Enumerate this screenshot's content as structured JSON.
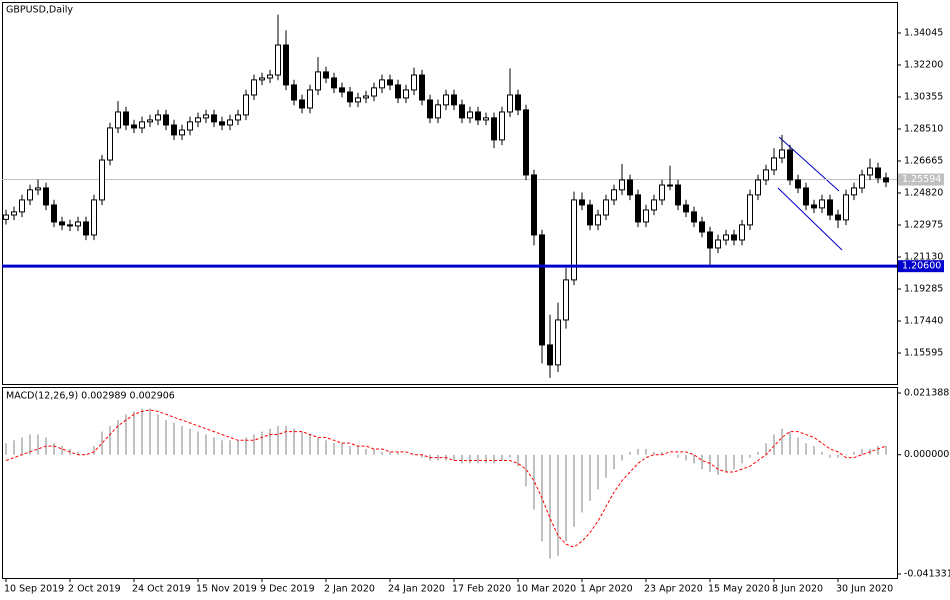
{
  "chart_data": [
    {
      "type": "candlestick",
      "title": "GBPUSD,Daily",
      "open": [
        1.233,
        1.2355,
        1.2373,
        1.2442,
        1.25,
        1.2511,
        1.2413,
        1.2315,
        1.2298,
        1.2292,
        1.2315,
        1.224,
        1.2442,
        1.2672,
        1.2857,
        1.2949,
        1.2874,
        1.2857,
        1.2892,
        1.2903,
        1.2932,
        1.2874,
        1.2817,
        1.2845,
        1.2892,
        1.2915,
        1.2932,
        1.2892,
        1.2874,
        1.2903,
        1.2932,
        1.3047,
        1.3134,
        1.3145,
        1.3162,
        1.3335,
        1.3105,
        1.3018,
        1.2972,
        1.3076,
        1.318,
        1.3145,
        1.3088,
        1.3064,
        1.3007,
        1.303,
        1.3041,
        1.3088,
        1.3134,
        1.3105,
        1.303,
        1.3076,
        1.3162,
        1.3018,
        1.2915,
        1.299,
        1.3047,
        1.299,
        1.2915,
        1.2949,
        1.2903,
        1.2915,
        1.2788,
        1.2949,
        1.3047,
        1.2961,
        1.2586,
        1.224,
        1.1606,
        1.1491,
        1.175,
        1.1981,
        1.2442,
        1.2413,
        1.2298,
        1.2355,
        1.2442,
        1.25,
        1.2557,
        1.2471,
        1.2315,
        1.2384,
        1.2442,
        1.2528,
        1.2528,
        1.2413,
        1.2373,
        1.2315,
        1.2257,
        1.2165,
        1.2211,
        1.224,
        1.2211,
        1.2298,
        1.2471,
        1.2557,
        1.2615,
        1.2684,
        1.273,
        1.2557,
        1.2511,
        1.2413,
        1.2396,
        1.2442,
        1.2355,
        1.2327,
        1.2471,
        1.2511,
        1.2586,
        1.2626,
        1.2569
      ],
      "high": [
        1.2385,
        1.2403,
        1.2472,
        1.253,
        1.256,
        1.2541,
        1.2443,
        1.2345,
        1.2328,
        1.2345,
        1.2345,
        1.2472,
        1.2702,
        1.2887,
        1.3012,
        1.2979,
        1.2904,
        1.2922,
        1.2933,
        1.2962,
        1.2962,
        1.2904,
        1.2875,
        1.2922,
        1.2945,
        1.2962,
        1.2962,
        1.2922,
        1.2933,
        1.2962,
        1.3077,
        1.3164,
        1.3175,
        1.3192,
        1.351,
        1.342,
        1.3135,
        1.3048,
        1.3106,
        1.3265,
        1.321,
        1.3175,
        1.3118,
        1.3094,
        1.306,
        1.3071,
        1.3118,
        1.3164,
        1.3164,
        1.3135,
        1.3106,
        1.3205,
        1.3192,
        1.3048,
        1.302,
        1.3077,
        1.3077,
        1.302,
        1.2979,
        1.2979,
        1.2945,
        1.2945,
        1.2979,
        1.32,
        1.3077,
        1.2991,
        1.2616,
        1.227,
        1.178,
        1.185,
        1.205,
        1.249,
        1.2485,
        1.2443,
        1.2385,
        1.2472,
        1.253,
        1.265,
        1.2587,
        1.2501,
        1.2414,
        1.2472,
        1.2558,
        1.264,
        1.2558,
        1.2443,
        1.2403,
        1.2345,
        1.2287,
        1.2241,
        1.227,
        1.227,
        1.2328,
        1.2501,
        1.2587,
        1.2645,
        1.274,
        1.2817,
        1.276,
        1.2587,
        1.2541,
        1.2443,
        1.2472,
        1.2472,
        1.2385,
        1.2501,
        1.2541,
        1.2616,
        1.268,
        1.2656,
        1.2599
      ],
      "low": [
        1.23,
        1.2325,
        1.2343,
        1.2412,
        1.247,
        1.2383,
        1.2285,
        1.2268,
        1.2262,
        1.2262,
        1.221,
        1.221,
        1.2412,
        1.2642,
        1.2827,
        1.2844,
        1.2827,
        1.2827,
        1.2862,
        1.2873,
        1.2844,
        1.2787,
        1.2787,
        1.2815,
        1.2862,
        1.2885,
        1.2862,
        1.2844,
        1.2844,
        1.2873,
        1.2902,
        1.3017,
        1.3104,
        1.3115,
        1.3132,
        1.3075,
        1.2988,
        1.2942,
        1.2942,
        1.3046,
        1.3115,
        1.3058,
        1.3034,
        1.2977,
        1.2977,
        1.3,
        1.3011,
        1.3058,
        1.3075,
        1.3,
        1.3,
        1.3046,
        1.2988,
        1.2885,
        1.2885,
        1.296,
        1.296,
        1.2885,
        1.2885,
        1.2873,
        1.2873,
        1.274,
        1.2758,
        1.2919,
        1.2931,
        1.2556,
        1.218,
        1.15,
        1.1416,
        1.145,
        1.17,
        1.1951,
        1.2383,
        1.2268,
        1.2268,
        1.2325,
        1.2412,
        1.247,
        1.2441,
        1.2285,
        1.2285,
        1.2354,
        1.2412,
        1.2498,
        1.2383,
        1.2343,
        1.2285,
        1.2227,
        1.2067,
        1.2135,
        1.2181,
        1.2181,
        1.2181,
        1.2268,
        1.2441,
        1.2527,
        1.2585,
        1.2654,
        1.2527,
        1.2481,
        1.2383,
        1.2366,
        1.2366,
        1.2325,
        1.228,
        1.2297,
        1.2441,
        1.2481,
        1.2556,
        1.2539,
        1.2516
      ],
      "close": [
        1.2355,
        1.2373,
        1.2442,
        1.25,
        1.2511,
        1.2413,
        1.2315,
        1.2298,
        1.2292,
        1.2315,
        1.224,
        1.2442,
        1.2672,
        1.2857,
        1.2949,
        1.2874,
        1.2857,
        1.2892,
        1.2903,
        1.2932,
        1.2874,
        1.2817,
        1.2845,
        1.2892,
        1.2915,
        1.2932,
        1.2892,
        1.2874,
        1.2903,
        1.2932,
        1.3047,
        1.3134,
        1.3145,
        1.3162,
        1.3335,
        1.3105,
        1.3018,
        1.2972,
        1.3076,
        1.318,
        1.3145,
        1.3088,
        1.3064,
        1.3007,
        1.303,
        1.3041,
        1.3088,
        1.3134,
        1.3105,
        1.303,
        1.3076,
        1.3162,
        1.3018,
        1.2915,
        1.299,
        1.3047,
        1.299,
        1.2915,
        1.2949,
        1.2903,
        1.2915,
        1.2788,
        1.2949,
        1.3047,
        1.2961,
        1.2586,
        1.224,
        1.1606,
        1.1491,
        1.175,
        1.1981,
        1.2442,
        1.2413,
        1.2298,
        1.2355,
        1.2442,
        1.25,
        1.2557,
        1.2471,
        1.2315,
        1.2384,
        1.2442,
        1.2528,
        1.2528,
        1.2413,
        1.2373,
        1.2315,
        1.2257,
        1.2165,
        1.2211,
        1.224,
        1.2211,
        1.2298,
        1.2471,
        1.2557,
        1.2615,
        1.2684,
        1.273,
        1.2557,
        1.2511,
        1.2413,
        1.2396,
        1.2442,
        1.2355,
        1.2327,
        1.2471,
        1.2511,
        1.2586,
        1.2626,
        1.2569,
        1.2546
      ],
      "up_color": "#ffffff",
      "down_color": "#000000",
      "ylim": [
        1.1375,
        1.3583
      ],
      "yticks": [
        1.34045,
        {
          "value": 1.322,
          "label": "1.32200"
        },
        1.30355,
        {
          "value": 1.2851,
          "label": "1.28510"
        },
        1.26665,
        {
          "value": 1.2482,
          "label": "1.24820"
        },
        1.22975,
        {
          "value": 1.2113,
          "label": "1.21130"
        },
        1.19285,
        {
          "value": 1.1744,
          "label": "1.17440"
        },
        1.15595
      ],
      "current_price": 1.25594,
      "current_price_color": "#c0c0c0",
      "level": {
        "value": 1.206,
        "label": "1.20600"
      },
      "level_color": "#0000cc"
    },
    {
      "type": "macd",
      "title": "MACD(12,26,9) 0.002989 0.002906",
      "categories": [
        "10 Sep 2019",
        null,
        null,
        null,
        null,
        null,
        null,
        null,
        "2 Oct 2019",
        null,
        null,
        null,
        null,
        null,
        null,
        null,
        "24 Oct 2019",
        null,
        null,
        null,
        null,
        null,
        null,
        null,
        "15 Nov 2019",
        null,
        null,
        null,
        null,
        null,
        null,
        null,
        "9 Dec 2019",
        null,
        null,
        null,
        null,
        null,
        null,
        null,
        "2 Jan 2020",
        null,
        null,
        null,
        null,
        null,
        null,
        null,
        "24 Jan 2020",
        null,
        null,
        null,
        null,
        null,
        null,
        null,
        "17 Feb 2020",
        null,
        null,
        null,
        null,
        null,
        null,
        null,
        "10 Mar 2020",
        null,
        null,
        null,
        null,
        null,
        null,
        null,
        "1 Apr 2020",
        null,
        null,
        null,
        null,
        null,
        null,
        null,
        "23 Apr 2020",
        null,
        null,
        null,
        null,
        null,
        null,
        null,
        "15 May 2020",
        null,
        null,
        null,
        null,
        null,
        null,
        null,
        "8 Jun 2020",
        null,
        null,
        null,
        null,
        null,
        null,
        null,
        "30 Jun 2020",
        null,
        null,
        null,
        null,
        null,
        null
      ],
      "series": [
        {
          "type": "bar",
          "color": "#c0c0c0",
          "values": [
            0.004,
            0.005,
            0.006,
            0.007,
            0.007,
            0.006,
            0.004,
            0.003,
            0.002,
            0.001,
            0.0,
            0.003,
            0.008,
            0.01,
            0.012,
            0.014,
            0.015,
            0.016,
            0.016,
            0.014,
            0.012,
            0.011,
            0.01,
            0.009,
            0.008,
            0.007,
            0.006,
            0.005,
            0.005,
            0.005,
            0.006,
            0.007,
            0.008,
            0.009,
            0.01,
            0.01,
            0.009,
            0.008,
            0.007,
            0.006,
            0.005,
            0.004,
            0.004,
            0.003,
            0.003,
            0.002,
            0.002,
            0.001,
            0.001,
            0.001,
            0.0,
            0.0,
            -0.001,
            -0.002,
            -0.002,
            -0.002,
            -0.002,
            -0.003,
            -0.003,
            -0.003,
            -0.003,
            -0.003,
            -0.002,
            -0.001,
            -0.004,
            -0.011,
            -0.019,
            -0.03,
            -0.036,
            -0.035,
            -0.03,
            -0.025,
            -0.02,
            -0.016,
            -0.012,
            -0.008,
            -0.005,
            -0.002,
            0.001,
            0.002,
            0.002,
            0.001,
            0.001,
            0.0,
            -0.001,
            -0.002,
            -0.003,
            -0.005,
            -0.006,
            -0.007,
            -0.006,
            -0.005,
            -0.003,
            -0.001,
            0.001,
            0.004,
            0.007,
            0.009,
            0.008,
            0.006,
            0.004,
            0.003,
            0.001,
            -0.001,
            -0.001,
            0.0,
            0.001,
            0.002,
            0.002,
            0.003,
            0.003
          ]
        },
        {
          "type": "line",
          "color": "#ff0000",
          "values": [
            -0.002,
            -0.001,
            0.0,
            0.001,
            0.002,
            0.003,
            0.003,
            0.002,
            0.001,
            0.0,
            0.0,
            0.001,
            0.004,
            0.007,
            0.01,
            0.012,
            0.014,
            0.015,
            0.0155,
            0.015,
            0.014,
            0.013,
            0.012,
            0.011,
            0.01,
            0.009,
            0.008,
            0.007,
            0.006,
            0.005,
            0.005,
            0.005,
            0.006,
            0.007,
            0.007,
            0.008,
            0.008,
            0.008,
            0.007,
            0.006,
            0.006,
            0.005,
            0.004,
            0.004,
            0.003,
            0.003,
            0.002,
            0.002,
            0.001,
            0.001,
            0.001,
            0.0,
            0.0,
            -0.001,
            -0.001,
            -0.001,
            -0.002,
            -0.002,
            -0.002,
            -0.002,
            -0.002,
            -0.002,
            -0.002,
            -0.002,
            -0.003,
            -0.005,
            -0.009,
            -0.015,
            -0.022,
            -0.028,
            -0.031,
            -0.032,
            -0.03,
            -0.027,
            -0.023,
            -0.018,
            -0.013,
            -0.009,
            -0.006,
            -0.003,
            -0.001,
            0.0,
            0.0,
            0.001,
            0.001,
            0.001,
            0.0,
            -0.002,
            -0.003,
            -0.005,
            -0.006,
            -0.006,
            -0.005,
            -0.004,
            -0.002,
            0.0,
            0.003,
            0.006,
            0.008,
            0.008,
            0.007,
            0.006,
            0.004,
            0.002,
            0.001,
            -0.001,
            -0.001,
            0.0,
            0.001,
            0.002,
            0.003
          ]
        }
      ],
      "ylim": [
        -0.041331,
        0.021388
      ],
      "yticks": [
        0.021388,
        {
          "value": 0,
          "label": "0.000000"
        },
        -0.041331
      ]
    }
  ]
}
